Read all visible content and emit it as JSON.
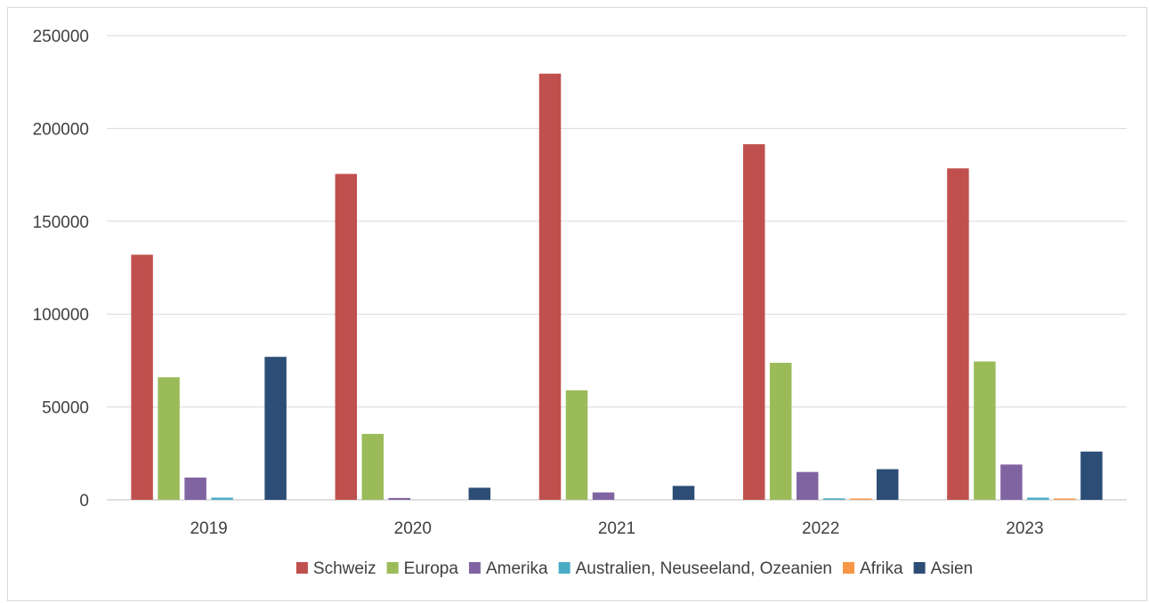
{
  "chart_data": {
    "type": "bar",
    "categories": [
      "2019",
      "2020",
      "2021",
      "2022",
      "2023"
    ],
    "series": [
      {
        "name": "Schweiz",
        "color": "#c0504d",
        "values": [
          132000,
          175500,
          229500,
          191500,
          178500
        ]
      },
      {
        "name": "Europa",
        "color": "#9bbb59",
        "values": [
          66000,
          35500,
          59000,
          73800,
          74500
        ]
      },
      {
        "name": "Amerika",
        "color": "#8064a2",
        "values": [
          12000,
          1000,
          4000,
          15000,
          19000
        ]
      },
      {
        "name": "Australien, Neuseeland, Ozeanien",
        "color": "#4bacc6",
        "values": [
          1200,
          0,
          0,
          800,
          1200
        ]
      },
      {
        "name": "Afrika",
        "color": "#f79646",
        "values": [
          0,
          0,
          0,
          700,
          600
        ]
      },
      {
        "name": "Asien",
        "color": "#2c4d75",
        "values": [
          77000,
          6500,
          7500,
          16500,
          26000
        ]
      }
    ],
    "ylim": [
      0,
      250000
    ],
    "yticks": [
      "0",
      "50000",
      "100000",
      "150000",
      "200000",
      "250000"
    ],
    "grid": true,
    "legend": "bottom"
  }
}
